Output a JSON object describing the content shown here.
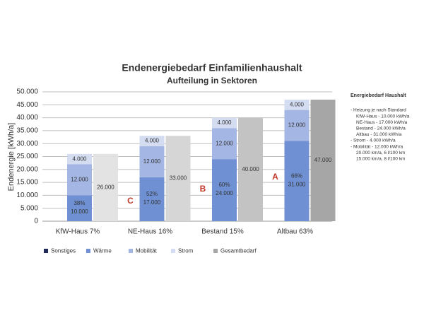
{
  "chart_data": {
    "type": "stacked-bar",
    "title": "Endenergiebedarf Einfamilienhaushalt",
    "subtitle": "Aufteilung in Sektoren",
    "y_label": "Endenergie [kWh/a]",
    "categories": [
      "KfW-Haus 7%",
      "NE-Haus 16%",
      "Bestand 15%",
      "Altbau 63%"
    ],
    "series": [
      {
        "name": "Sonstiges",
        "color": "#1f2a5a",
        "values": [
          0,
          0,
          0,
          0
        ]
      },
      {
        "name": "Wärme",
        "color": "#6f90d2",
        "values": [
          10000,
          17000,
          24000,
          31000
        ],
        "value_labels": [
          "10.000",
          "17.000",
          "24.000",
          "31.000"
        ],
        "percent_labels": [
          "38%",
          "52%",
          "60%",
          "66%"
        ]
      },
      {
        "name": "Mobilität",
        "color": "#a4b6e3",
        "values": [
          12000,
          12000,
          12000,
          12000
        ],
        "value_labels": [
          "12.000",
          "12.000",
          "12.000",
          "12.000"
        ]
      },
      {
        "name": "Strom",
        "color": "#d3dcf0",
        "values": [
          4000,
          4000,
          4000,
          4000
        ],
        "value_labels": [
          "4.000",
          "4.000",
          "4.000",
          "4.000"
        ]
      }
    ],
    "total_series": {
      "name": "Gesamtbedarf",
      "color": "#a6a6a6",
      "colors": [
        "#e3e3e3",
        "#d6d6d6",
        "#c3c3c3",
        "#a6a6a6"
      ],
      "values": [
        26000,
        33000,
        40000,
        47000
      ],
      "value_labels": [
        "26.000",
        "33.000",
        "40.000",
        "47.000"
      ]
    },
    "annotations": [
      "C",
      "B",
      "A"
    ],
    "annotation_color": "#c0392b",
    "ylim": [
      0,
      50000
    ],
    "yticks": [
      0,
      {
        "value": 5000,
        "label": "5.000"
      },
      {
        "value": 10000,
        "label": "10.000"
      },
      {
        "value": 15000,
        "label": "15.000"
      },
      {
        "value": 20000,
        "label": "20.000"
      },
      {
        "value": 25000,
        "label": "25.000"
      },
      {
        "value": 30000,
        "label": "30.000"
      },
      {
        "value": 35000,
        "label": "35.000"
      },
      {
        "value": 40000,
        "label": "40.000"
      },
      {
        "value": 45000,
        "label": "45.000"
      },
      {
        "value": 50000,
        "label": "50.000"
      }
    ],
    "grid": true,
    "legend": "bottom",
    "side_note": {
      "title": "Energiebedarf Haushalt",
      "lines": [
        "- Heizung je nach Standard",
        "KfW-Haus - 10.000 kWh/a",
        "NE-Haus - 17.000 kWh/a",
        "Bestand - 24.000 kWh/a",
        "Altbau - 31.000 kWh/a",
        "- Strom - 4.000 kWh/a",
        "- Mobilität - 12.000 kWh/a",
        "20.000 km/a, 6 l/100 km",
        "15.000 km/a, 8 l/100 km"
      ]
    }
  }
}
